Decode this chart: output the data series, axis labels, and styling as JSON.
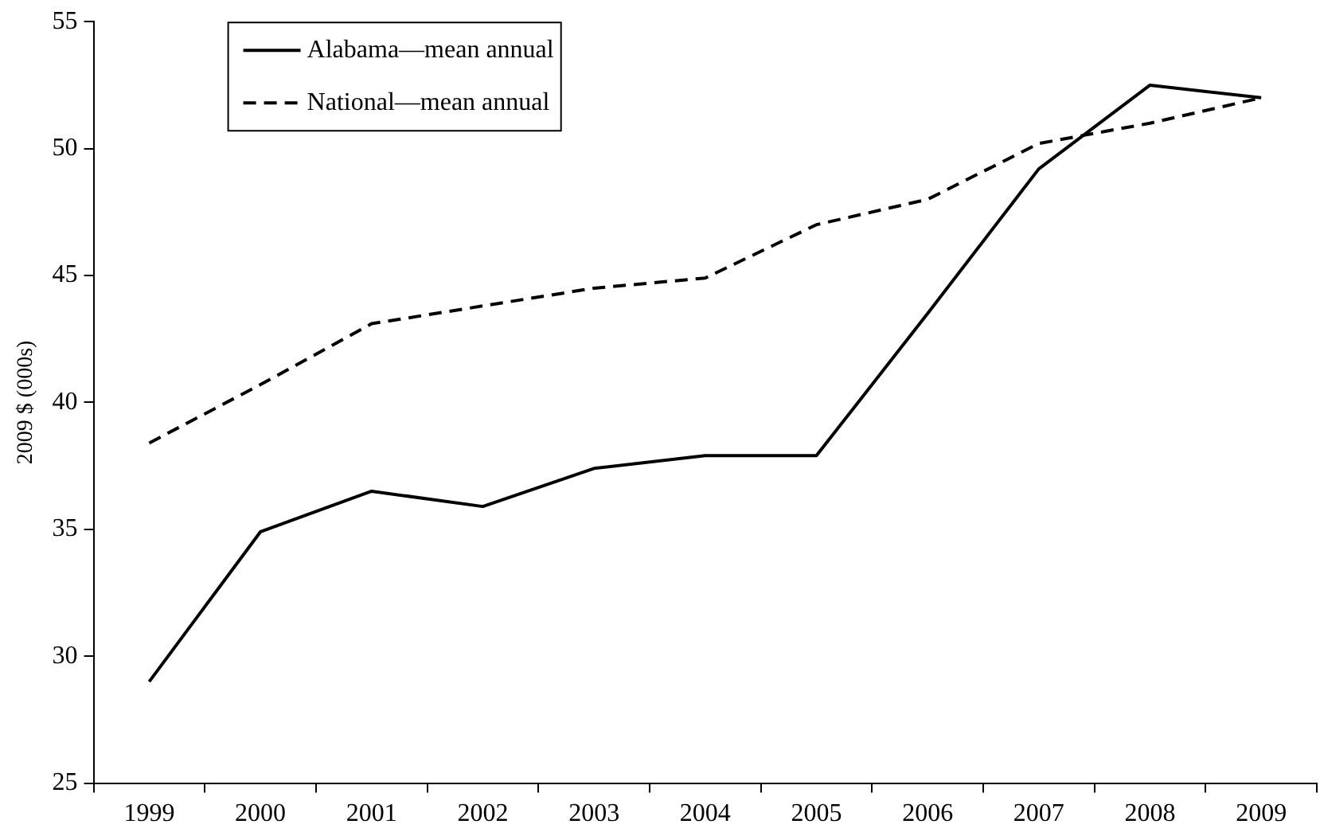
{
  "chart_data": {
    "type": "line",
    "ylabel": "2009 $ (000s)",
    "categories": [
      "1999",
      "2000",
      "2001",
      "2002",
      "2003",
      "2004",
      "2005",
      "2006",
      "2007",
      "2008",
      "2009"
    ],
    "series": [
      {
        "name": "Alabama—mean annual",
        "color": "#000000",
        "line_style": "solid",
        "values": [
          29.0,
          34.9,
          36.5,
          35.9,
          37.4,
          37.9,
          37.9,
          43.5,
          49.2,
          52.5,
          52.0
        ]
      },
      {
        "name": "National—mean annual",
        "color": "#000000",
        "line_style": "dashed",
        "values": [
          38.4,
          40.7,
          43.1,
          43.8,
          44.5,
          44.9,
          47.0,
          48.0,
          50.2,
          51.0,
          52.0
        ]
      }
    ],
    "ylim": [
      25,
      55
    ],
    "yticks": [
      25,
      30,
      35,
      40,
      45,
      50,
      55
    ],
    "grid": false,
    "legend": "top left",
    "marker": "none"
  }
}
